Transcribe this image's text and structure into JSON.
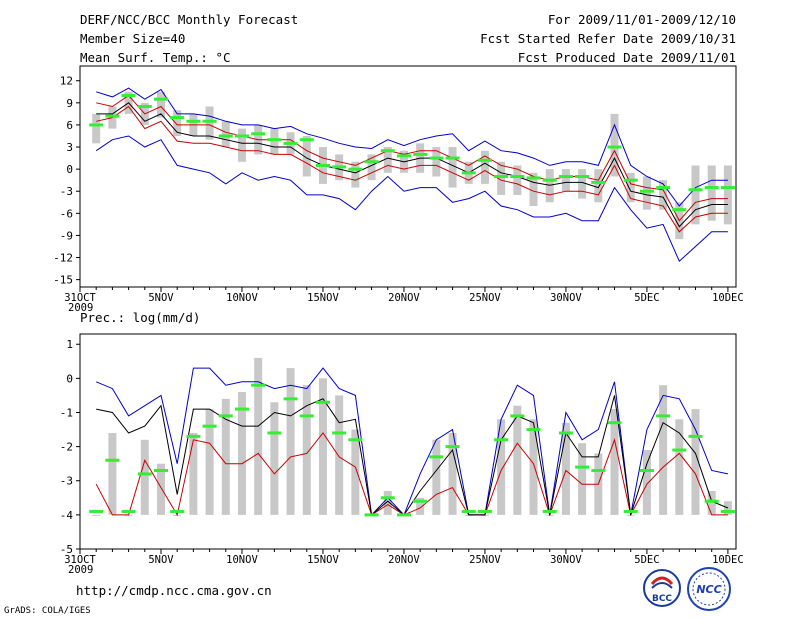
{
  "header": {
    "title": "DERF/NCC/BCC Monthly Forecast",
    "member_size": "Member Size=40",
    "variable": "Mean Surf. Temp.: °C",
    "period": "For 2009/11/01-2009/12/10",
    "refer_date": "Fcst Started Refer Date 2009/10/31",
    "produced_date": "Fcst Produced Date 2009/11/01"
  },
  "footer": {
    "url": "http://cmdp.ncc.cma.gov.cn",
    "grads": "GrADS: COLA/IGES",
    "logo_bcc": "BCC",
    "logo_ncc": "NCC"
  },
  "x_axis": {
    "ticks": [
      {
        "day": 0,
        "label": "31OCT"
      },
      {
        "day": 5,
        "label": "5NOV"
      },
      {
        "day": 10,
        "label": "10NOV"
      },
      {
        "day": 15,
        "label": "15NOV"
      },
      {
        "day": 20,
        "label": "20NOV"
      },
      {
        "day": 25,
        "label": "25NOV"
      },
      {
        "day": 30,
        "label": "30NOV"
      },
      {
        "day": 35,
        "label": "5DEC"
      },
      {
        "day": 40,
        "label": "10DEC"
      }
    ],
    "year": "2009"
  },
  "colors": {
    "bar": "#c8c8c8",
    "green": "#33ee33",
    "blue": "#0000cc",
    "red": "#cc0000",
    "black": "#000000"
  },
  "chart_data": [
    {
      "type": "line",
      "panel": "temperature",
      "title": "Mean Surf. Temp.: °C",
      "ylabel": "",
      "ylim": [
        -16,
        14
      ],
      "yticks": [
        12,
        9,
        6,
        3,
        0,
        -3,
        -6,
        -9,
        -12,
        -15
      ],
      "x": [
        1,
        2,
        3,
        4,
        5,
        6,
        7,
        8,
        9,
        10,
        11,
        12,
        13,
        14,
        15,
        16,
        17,
        18,
        19,
        20,
        21,
        22,
        23,
        24,
        25,
        26,
        27,
        28,
        29,
        30,
        31,
        32,
        33,
        34,
        35,
        36,
        37,
        38,
        39,
        40
      ],
      "series": [
        {
          "name": "ensemble max",
          "color": "blue",
          "values": [
            10.5,
            9.8,
            11.0,
            9.5,
            10.8,
            7.5,
            7.5,
            7.2,
            6.5,
            6.0,
            6.0,
            5.5,
            5.8,
            4.8,
            4.2,
            3.5,
            3.0,
            2.8,
            4.0,
            3.2,
            4.0,
            4.5,
            4.8,
            2.5,
            3.8,
            2.5,
            2.2,
            1.5,
            0.5,
            1.0,
            1.0,
            0.5,
            6.0,
            0.5,
            -1.0,
            -2.0,
            -5.0,
            -2.5,
            -1.5,
            -1.5
          ]
        },
        {
          "name": "ensemble upper",
          "color": "red",
          "values": [
            9.0,
            8.5,
            10.0,
            7.5,
            8.5,
            6.0,
            6.0,
            6.0,
            5.0,
            4.5,
            4.0,
            4.0,
            4.0,
            2.5,
            1.5,
            1.0,
            0.5,
            1.5,
            2.5,
            2.0,
            2.5,
            2.5,
            1.5,
            0.5,
            1.8,
            0.5,
            0.0,
            -1.0,
            -1.5,
            -1.0,
            -1.0,
            -1.5,
            2.5,
            -2.0,
            -2.5,
            -2.8,
            -7.0,
            -4.5,
            -4.0,
            -4.0
          ]
        },
        {
          "name": "ensemble mean",
          "color": "black",
          "values": [
            7.5,
            7.5,
            9.0,
            6.5,
            7.5,
            5.0,
            4.5,
            4.5,
            4.0,
            3.5,
            3.5,
            3.0,
            3.0,
            1.5,
            0.5,
            0.0,
            -0.5,
            0.5,
            1.5,
            1.0,
            1.5,
            1.5,
            0.5,
            -0.5,
            0.8,
            -0.5,
            -1.0,
            -1.8,
            -2.2,
            -1.8,
            -1.8,
            -2.5,
            1.5,
            -3.0,
            -3.5,
            -3.8,
            -7.8,
            -5.5,
            -4.8,
            -4.8
          ]
        },
        {
          "name": "ensemble lower",
          "color": "red",
          "values": [
            6.5,
            7.0,
            8.5,
            5.5,
            6.5,
            3.8,
            3.5,
            3.5,
            3.0,
            2.5,
            2.5,
            2.0,
            2.0,
            0.8,
            -0.5,
            -1.0,
            -1.5,
            -0.5,
            0.5,
            0.0,
            0.5,
            0.5,
            -0.5,
            -1.5,
            -0.2,
            -1.5,
            -2.0,
            -3.0,
            -3.5,
            -3.0,
            -3.0,
            -3.5,
            0.5,
            -4.0,
            -4.5,
            -5.0,
            -8.5,
            -6.5,
            -6.0,
            -6.0
          ]
        },
        {
          "name": "ensemble min",
          "color": "blue",
          "values": [
            2.5,
            4.0,
            4.5,
            3.0,
            4.0,
            0.5,
            0.0,
            -0.5,
            -2.0,
            -0.5,
            -1.5,
            -1.0,
            -1.5,
            -3.5,
            -3.5,
            -4.0,
            -5.5,
            -3.0,
            -1.0,
            -3.0,
            -2.5,
            -2.5,
            -4.5,
            -4.0,
            -3.0,
            -5.0,
            -5.5,
            -6.5,
            -6.5,
            -6.0,
            -7.0,
            -7.0,
            -2.5,
            -5.5,
            -8.0,
            -7.5,
            -12.5,
            -10.5,
            -8.5,
            -8.5
          ]
        },
        {
          "name": "observed",
          "color": "green",
          "values": [
            6.0,
            7.2,
            10.0,
            8.5,
            9.5,
            7.0,
            6.5,
            6.5,
            4.5,
            4.5,
            4.8,
            4.0,
            3.5,
            4.0,
            0.5,
            0.3,
            0.0,
            1.0,
            2.5,
            1.8,
            2.0,
            1.5,
            1.5,
            -0.5,
            1.2,
            -1.0,
            -1.0,
            -1.2,
            -1.5,
            -1.0,
            -1.0,
            -1.8,
            3.0,
            -1.5,
            -3.0,
            -2.5,
            -5.5,
            -2.8,
            -2.5,
            -2.5
          ]
        },
        {
          "name": "spread top",
          "color": "bar",
          "values": [
            7.5,
            8.5,
            10.5,
            9.0,
            10.5,
            8.0,
            7.5,
            8.5,
            6.5,
            5.5,
            6.0,
            5.5,
            5.0,
            4.5,
            3.0,
            2.0,
            1.0,
            2.0,
            3.0,
            2.5,
            3.5,
            3.0,
            3.0,
            1.0,
            2.5,
            1.0,
            0.5,
            -0.5,
            0.0,
            0.0,
            0.0,
            0.0,
            7.5,
            -0.5,
            -1.0,
            -1.5,
            -4.5,
            0.5,
            0.5,
            0.5
          ]
        },
        {
          "name": "spread bottom",
          "color": "bar",
          "values": [
            3.5,
            5.5,
            7.5,
            6.0,
            7.0,
            4.5,
            4.5,
            4.0,
            3.0,
            1.0,
            2.0,
            2.0,
            2.0,
            -1.0,
            -2.0,
            -1.5,
            -2.5,
            -1.5,
            -0.5,
            -0.5,
            -0.5,
            -1.0,
            -2.5,
            -2.0,
            -2.0,
            -3.5,
            -3.5,
            -5.0,
            -4.5,
            -3.0,
            -4.0,
            -4.5,
            -1.0,
            -4.5,
            -5.5,
            -5.5,
            -9.5,
            -7.5,
            -7.0,
            -7.5
          ]
        }
      ]
    },
    {
      "type": "line",
      "panel": "precipitation",
      "title": "Prec.: log(mm/d)",
      "ylabel": "",
      "ylim": [
        -5,
        1.3
      ],
      "yticks": [
        1,
        0,
        -1,
        -2,
        -3,
        -4,
        -5
      ],
      "x": [
        1,
        2,
        3,
        4,
        5,
        6,
        7,
        8,
        9,
        10,
        11,
        12,
        13,
        14,
        15,
        16,
        17,
        18,
        19,
        20,
        21,
        22,
        23,
        24,
        25,
        26,
        27,
        28,
        29,
        30,
        31,
        32,
        33,
        34,
        35,
        36,
        37,
        38,
        39,
        40
      ],
      "series": [
        {
          "name": "ensemble max",
          "color": "blue",
          "values": [
            -0.1,
            -0.3,
            -1.1,
            -0.8,
            -0.5,
            -2.5,
            0.3,
            0.3,
            -0.2,
            -0.1,
            -0.1,
            -0.3,
            -0.2,
            -0.3,
            0.3,
            -0.3,
            -0.5,
            -4.0,
            -3.5,
            -4.0,
            -2.8,
            -1.8,
            -1.5,
            -4.0,
            -4.0,
            -1.2,
            -0.2,
            -0.5,
            -4.0,
            -1.0,
            -1.8,
            -1.5,
            -0.1,
            -4.0,
            -1.5,
            -0.5,
            -0.6,
            -1.5,
            -2.7,
            -2.8
          ]
        },
        {
          "name": "ensemble mean",
          "color": "black",
          "values": [
            -0.9,
            -1.0,
            -1.6,
            -1.4,
            -0.8,
            -3.4,
            -0.9,
            -0.9,
            -1.2,
            -1.4,
            -1.4,
            -1.0,
            -1.1,
            -0.8,
            -0.6,
            -1.3,
            -1.2,
            -4.0,
            -3.6,
            -4.0,
            -3.3,
            -2.7,
            -2.1,
            -4.0,
            -4.0,
            -1.8,
            -1.1,
            -1.3,
            -4.0,
            -1.6,
            -2.3,
            -2.3,
            -0.5,
            -4.0,
            -2.5,
            -1.3,
            -1.6,
            -2.2,
            -3.6,
            -3.8
          ]
        },
        {
          "name": "ensemble lower",
          "color": "red",
          "values": [
            -3.1,
            -4.0,
            -4.0,
            -2.4,
            -3.2,
            -4.0,
            -1.8,
            -1.9,
            -2.5,
            -2.5,
            -2.2,
            -2.8,
            -2.3,
            -2.2,
            -1.6,
            -2.3,
            -2.6,
            -4.0,
            -3.7,
            -4.0,
            -3.8,
            -3.4,
            -3.2,
            -4.0,
            -4.0,
            -2.7,
            -1.9,
            -2.5,
            -4.0,
            -2.7,
            -3.1,
            -3.1,
            -1.8,
            -4.0,
            -3.1,
            -2.6,
            -2.2,
            -2.8,
            -4.0,
            -4.0
          ]
        },
        {
          "name": "observed",
          "color": "green",
          "values": [
            -3.9,
            -2.4,
            -3.9,
            -2.8,
            -2.7,
            -3.9,
            -1.7,
            -1.4,
            -1.1,
            -0.9,
            -0.2,
            -1.6,
            -0.6,
            -1.1,
            -0.7,
            -1.6,
            -1.8,
            -4.0,
            -3.5,
            -4.0,
            -3.6,
            -2.3,
            -2.0,
            -3.9,
            -3.9,
            -1.8,
            -1.1,
            -1.5,
            -3.9,
            -1.6,
            -2.6,
            -2.7,
            -1.3,
            -3.9,
            -2.7,
            -1.1,
            -2.1,
            -1.7,
            -3.6,
            -3.9
          ]
        },
        {
          "name": "spread top",
          "color": "bar",
          "values": [
            -4.0,
            -1.6,
            -4.0,
            -1.8,
            -2.5,
            -4.0,
            -1.6,
            -0.9,
            -0.6,
            -0.4,
            0.6,
            -0.7,
            0.3,
            -0.2,
            0.0,
            -0.5,
            -1.5,
            -4.0,
            -3.3,
            -4.0,
            -3.5,
            -1.8,
            -1.6,
            -4.0,
            -4.0,
            -1.2,
            -0.8,
            -1.2,
            -4.0,
            -1.3,
            -1.9,
            -2.2,
            -0.9,
            -4.0,
            -2.1,
            -0.2,
            -1.2,
            -0.9,
            -3.3,
            -3.6
          ]
        },
        {
          "name": "spread bottom",
          "color": "bar",
          "values": [
            -4.0,
            -4.0,
            -4.0,
            -4.0,
            -4.0,
            -4.0,
            -4.0,
            -4.0,
            -4.0,
            -4.0,
            -4.0,
            -4.0,
            -4.0,
            -4.0,
            -4.0,
            -4.0,
            -4.0,
            -4.0,
            -4.0,
            -4.0,
            -4.0,
            -4.0,
            -4.0,
            -4.0,
            -4.0,
            -4.0,
            -4.0,
            -4.0,
            -4.0,
            -4.0,
            -4.0,
            -4.0,
            -4.0,
            -4.0,
            -4.0,
            -4.0,
            -4.0,
            -4.0,
            -4.0,
            -4.0
          ]
        }
      ]
    }
  ]
}
